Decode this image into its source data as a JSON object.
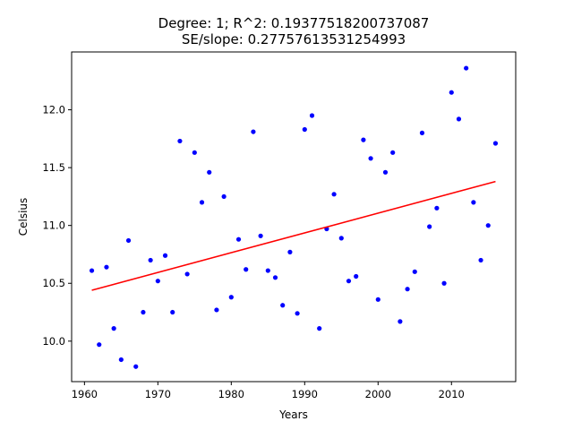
{
  "chart_data": {
    "type": "scatter",
    "title_line1": "Degree: 1; R^2: 0.19377518200737087",
    "title_line2": "SE/slope: 0.27757613531254993",
    "xlabel": "Years",
    "ylabel": "Celsius",
    "xlim": [
      1958.25,
      2018.75
    ],
    "ylim": [
      9.65,
      12.5
    ],
    "xticks": [
      1960,
      1970,
      1980,
      1990,
      2000,
      2010
    ],
    "yticks": [
      10.0,
      10.5,
      11.0,
      11.5,
      12.0
    ],
    "xtick_labels": [
      "1960",
      "1970",
      "1980",
      "1990",
      "2000",
      "2010"
    ],
    "ytick_labels": [
      "10.0",
      "10.5",
      "11.0",
      "11.5",
      "12.0"
    ],
    "grid": false,
    "point_color": "#0000ff",
    "line_color": "#ff0000",
    "series": [
      {
        "kind": "points",
        "x": [
          1961,
          1962,
          1963,
          1964,
          1965,
          1966,
          1967,
          1968,
          1969,
          1970,
          1971,
          1972,
          1973,
          1974,
          1975,
          1976,
          1977,
          1978,
          1979,
          1980,
          1981,
          1982,
          1983,
          1984,
          1985,
          1986,
          1987,
          1988,
          1989,
          1990,
          1991,
          1992,
          1993,
          1994,
          1995,
          1996,
          1997,
          1998,
          1999,
          2000,
          2001,
          2002,
          2003,
          2004,
          2005,
          2006,
          2007,
          2008,
          2009,
          2010,
          2011,
          2012,
          2013,
          2014,
          2015,
          2016
        ],
        "y": [
          10.61,
          9.97,
          10.64,
          10.11,
          9.84,
          10.87,
          9.78,
          10.25,
          10.7,
          10.52,
          10.74,
          10.25,
          11.73,
          10.58,
          11.63,
          11.2,
          11.46,
          10.27,
          11.25,
          10.38,
          10.88,
          10.62,
          11.81,
          10.91,
          10.61,
          10.55,
          10.31,
          10.77,
          10.24,
          11.83,
          11.95,
          10.11,
          10.97,
          11.27,
          10.89,
          10.52,
          10.56,
          11.74,
          11.58,
          10.36,
          11.46,
          11.63,
          10.17,
          10.45,
          10.6,
          11.8,
          10.99,
          11.15,
          10.5,
          12.15,
          11.92,
          12.36,
          11.2,
          10.7,
          11.0,
          11.71
        ]
      },
      {
        "kind": "fit",
        "x": [
          1961,
          2016
        ],
        "y": [
          10.44,
          11.38
        ]
      }
    ]
  }
}
